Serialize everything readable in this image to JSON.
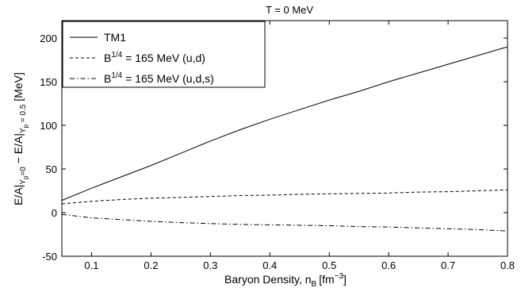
{
  "chart_data": {
    "type": "line",
    "title": "T = 0 MeV",
    "xlabel": "Baryon Density, n",
    "xlabel_sub": "B",
    "xlabel_unit_pre": "[fm",
    "xlabel_unit_sup": "−3",
    "xlabel_unit_post": "]",
    "ylabel_parts": {
      "a": "E/A|",
      "a_sub": "Y",
      "a_subsub": "p",
      "a_sub_val": "=0",
      "minus": " − ",
      "b": "E/A|",
      "b_sub": "Y",
      "b_subsub": "p",
      "b_sub_val": " = 0.5",
      "unit": "  [MeV]"
    },
    "xlim": [
      0.05,
      0.8
    ],
    "ylim": [
      -50,
      220
    ],
    "xticks": [
      0.1,
      0.2,
      0.3,
      0.4,
      0.5,
      0.6,
      0.7,
      0.8
    ],
    "yticks": [
      -50,
      0,
      50,
      100,
      150,
      200
    ],
    "grid": false,
    "legend_position": "top-left",
    "series": [
      {
        "name": "TM1",
        "style": "solid",
        "x": [
          0.05,
          0.1,
          0.15,
          0.2,
          0.25,
          0.3,
          0.35,
          0.4,
          0.45,
          0.5,
          0.55,
          0.6,
          0.65,
          0.7,
          0.75,
          0.8
        ],
        "y": [
          14,
          28,
          41,
          54,
          68,
          82,
          95,
          107,
          118,
          129,
          139,
          150,
          160,
          170,
          180,
          190
        ]
      },
      {
        "name_pre": "B",
        "name_sup": "1/4",
        "name_post": " = 165 MeV (u,d)",
        "style": "dashed",
        "x": [
          0.05,
          0.1,
          0.15,
          0.2,
          0.25,
          0.3,
          0.35,
          0.4,
          0.45,
          0.5,
          0.55,
          0.6,
          0.65,
          0.7,
          0.75,
          0.8
        ],
        "y": [
          10,
          13,
          15,
          16.5,
          17.5,
          18.5,
          19.5,
          20,
          21,
          21.5,
          22,
          22.5,
          23.5,
          24,
          25,
          26
        ]
      },
      {
        "name_pre": "B",
        "name_sup": "1/4",
        "name_post": " = 165 MeV (u,d,s)",
        "style": "dashdot",
        "x": [
          0.05,
          0.1,
          0.15,
          0.2,
          0.25,
          0.3,
          0.35,
          0.4,
          0.45,
          0.5,
          0.55,
          0.6,
          0.65,
          0.7,
          0.75,
          0.8
        ],
        "y": [
          -2,
          -6,
          -8,
          -10,
          -11.5,
          -12.5,
          -13.5,
          -14,
          -14.5,
          -15,
          -16,
          -16.5,
          -17.5,
          -18.5,
          -19.5,
          -21
        ]
      }
    ]
  }
}
